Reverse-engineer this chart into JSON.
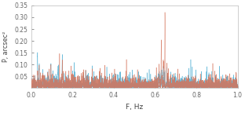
{
  "xlabel": "F, Hz",
  "ylabel": "P, arcsec²",
  "xlim": [
    0,
    1.0
  ],
  "ylim": [
    0,
    0.35
  ],
  "yticks": [
    0.05,
    0.1,
    0.15,
    0.2,
    0.25,
    0.3,
    0.35
  ],
  "xticks": [
    0,
    0.2,
    0.4,
    0.6,
    0.8,
    1.0
  ],
  "color_blue": "#5ab4d6",
  "color_orange": "#d4735a",
  "seed": 42,
  "background_color": "#ffffff",
  "linewidth": 0.35,
  "noise_floor": 0.012,
  "spike_density": 0.015
}
